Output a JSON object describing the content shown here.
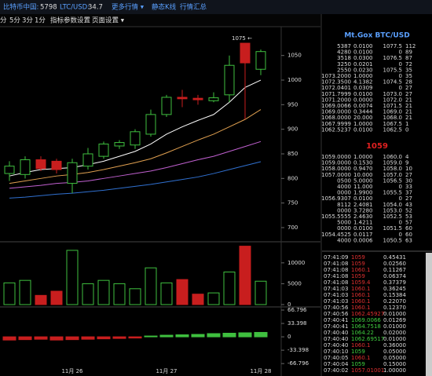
{
  "toolbar": {
    "cn_label": "比特币中国:",
    "cn_price": "5798",
    "ltc_label": "LTC/USD:",
    "ltc_price": "34.7",
    "more": "更多行情 ▾",
    "static": "静态K线",
    "summary": "行情汇总"
  },
  "toolbar2": {
    "periods": [
      "分",
      "5分",
      "3分",
      "1分"
    ],
    "settings": "指标参数设置",
    "page": "页面设置 ▾"
  },
  "chart_data": [
    {
      "type": "candlestick",
      "categories": [
        null,
        null,
        null,
        null,
        "11月 26",
        null,
        null,
        null,
        null,
        null,
        "11月 27",
        null,
        null,
        null,
        null,
        null,
        "11月 28"
      ],
      "open": [
        810,
        808,
        838,
        835,
        790,
        825,
        845,
        866,
        868,
        890,
        930,
        965,
        963,
        958,
        970,
        1075,
        1022
      ],
      "high": [
        835,
        845,
        845,
        840,
        840,
        862,
        875,
        878,
        900,
        940,
        970,
        980,
        970,
        975,
        1050,
        1075,
        1062
      ],
      "low": [
        795,
        800,
        815,
        810,
        770,
        818,
        840,
        860,
        860,
        885,
        925,
        945,
        950,
        955,
        955,
        920,
        1010
      ],
      "close": [
        825,
        838,
        820,
        818,
        832,
        850,
        870,
        873,
        895,
        930,
        965,
        962,
        960,
        964,
        1030,
        1035,
        1058
      ],
      "up_color": "#3fbf3f",
      "down_color": "#c81e1e",
      "series": [
        {
          "color": "#ffffff",
          "values": [
            805,
            812,
            818,
            820,
            822,
            828,
            835,
            845,
            855,
            870,
            890,
            905,
            918,
            930,
            955,
            985,
            1000
          ]
        },
        {
          "color": "#e0a050",
          "values": [
            790,
            795,
            800,
            805,
            808,
            812,
            818,
            825,
            832,
            840,
            852,
            865,
            878,
            890,
            905,
            920,
            940
          ]
        },
        {
          "color": "#c060d0",
          "values": [
            780,
            783,
            786,
            790,
            792,
            795,
            800,
            805,
            810,
            815,
            822,
            830,
            838,
            845,
            855,
            865,
            875
          ]
        },
        {
          "color": "#3070d0",
          "values": [
            760,
            762,
            765,
            768,
            770,
            773,
            776,
            780,
            784,
            788,
            793,
            798,
            803,
            810,
            818,
            826,
            834
          ]
        }
      ],
      "annotation": "1075 ←",
      "ylim": [
        676,
        1099
      ],
      "yticks": [
        700,
        750,
        800,
        850,
        900,
        950,
        1000,
        1050
      ]
    },
    {
      "type": "bar",
      "values": [
        5200,
        5800,
        2200,
        3200,
        13000,
        5000,
        5800,
        5000,
        3800,
        8800,
        5200,
        6000,
        2500,
        2800,
        7800,
        14000,
        5600
      ],
      "ylim": [
        0,
        14300
      ],
      "yticks": [
        0,
        5000,
        10000
      ]
    },
    {
      "type": "bar",
      "values": [
        -8,
        -7,
        -6,
        -8,
        -7,
        -6,
        -5,
        -4,
        -3,
        2,
        4,
        5,
        6,
        8,
        9,
        10,
        11
      ],
      "pos_color": "#3fbf3f",
      "neg_color": "#c81e1e",
      "ylim": [
        -90,
        72.7
      ],
      "yticks": [
        -66.796,
        -33.398,
        0,
        33.398,
        66.796
      ]
    }
  ],
  "orderbook": {
    "title": "Mt.Gox BTC/USD",
    "asks": [
      [
        "5387",
        "0.0100",
        "1077.5",
        "112"
      ],
      [
        "4280",
        "0.0100",
        "0",
        "89"
      ],
      [
        "3518",
        "0.0300",
        "1076.5",
        "87"
      ],
      [
        "3250",
        "0.0201",
        "0",
        "72"
      ],
      [
        "2550",
        "0.0230",
        "1075.5",
        "35"
      ],
      [
        "1073.2000",
        "1.0000",
        "0",
        "35"
      ],
      [
        "1072.3500",
        "4.1382",
        "1074.5",
        "28"
      ],
      [
        "1072.0401",
        "0.0309",
        "0",
        "27"
      ],
      [
        "1071.7999",
        "0.0100",
        "1073.0",
        "27"
      ],
      [
        "1071.2000",
        "0.0000",
        "1072.0",
        "21"
      ],
      [
        "1069.0066",
        "0.0074",
        "1071.5",
        "21"
      ],
      [
        "1069.0000",
        "0.3444",
        "1069.0",
        "21"
      ],
      [
        "1068.0000",
        "20.000",
        "1068.0",
        "21"
      ],
      [
        "1067.9999",
        "1.0000",
        "1067.5",
        "1"
      ],
      [
        "1062.5237",
        "0.0100",
        "1062.5",
        "0"
      ]
    ],
    "last": "1059",
    "bids": [
      [
        "1059.0000",
        "1.0000",
        "1060.0",
        "4"
      ],
      [
        "1059.0000",
        "0.1530",
        "1059.0",
        "9"
      ],
      [
        "1058.0000",
        "0.9470",
        "1058.0",
        "10"
      ],
      [
        "1057.0000",
        "10.000",
        "1057.0",
        "27"
      ],
      [
        "0500",
        "5.0000",
        "1056.5",
        "30"
      ],
      [
        "4000",
        "11.000",
        "0",
        "33"
      ],
      [
        "0000",
        "1.9900",
        "1055.5",
        "37"
      ],
      [
        "1056.9307",
        "0.0100",
        "0",
        "27"
      ],
      [
        "8112",
        "2.4081",
        "1054.0",
        "43"
      ],
      [
        "0000",
        "3.7280",
        "1053.0",
        "52"
      ],
      [
        "1055.5555",
        "2.4630",
        "1052.5",
        "53"
      ],
      [
        "5000",
        "1.4211",
        "0",
        "57"
      ],
      [
        "0000",
        "0.0100",
        "1051.5",
        "60"
      ],
      [
        "1054.4525",
        "0.0117",
        "0",
        "60"
      ],
      [
        "4000",
        "0.0006",
        "1050.5",
        "63"
      ]
    ]
  },
  "trades": [
    [
      "07:41:09",
      "1059",
      "0.45431",
      "#e03030"
    ],
    [
      "07:41:08",
      "1059",
      "0.02560",
      "#e03030"
    ],
    [
      "07:41:08",
      "1060.1",
      "0.11267",
      "#e03030"
    ],
    [
      "07:41:08",
      "1059",
      "0.06374",
      "#e03030"
    ],
    [
      "07:41:08",
      "1059.4",
      "0.37379",
      "#e03030"
    ],
    [
      "07:41:03",
      "1060.1",
      "0.36245",
      "#e03030"
    ],
    [
      "07:41:03",
      "1060.1",
      "0.15384",
      "#e03030"
    ],
    [
      "07:41:03",
      "1060.1",
      "0.22070",
      "#e03030"
    ],
    [
      "07:40:56",
      "1060.1",
      "0.12370",
      "#e03030"
    ],
    [
      "07:40:56",
      "1062.45927",
      "0.01000",
      "#e03030"
    ],
    [
      "07:40:41",
      "1069.0066",
      "0.01269",
      "#40d040"
    ],
    [
      "07:40:41",
      "1064.7518",
      "0.01000",
      "#40d040"
    ],
    [
      "07:40:40",
      "1064.22",
      "0.02000",
      "#40d040"
    ],
    [
      "07:40:40",
      "1062.69517",
      "0.01000",
      "#40d040"
    ],
    [
      "07:40:40",
      "1060.1",
      "0.36000",
      "#e03030"
    ],
    [
      "07:40:10",
      "1059",
      "0.05000",
      "#40d040"
    ],
    [
      "07:40:05",
      "1060.1",
      "0.05000",
      "#e03030"
    ],
    [
      "07:40:04",
      "1059",
      "0.15000",
      "#40d040"
    ],
    [
      "07:40:02",
      "1057.01001",
      "1.00000",
      "#e03030"
    ]
  ]
}
